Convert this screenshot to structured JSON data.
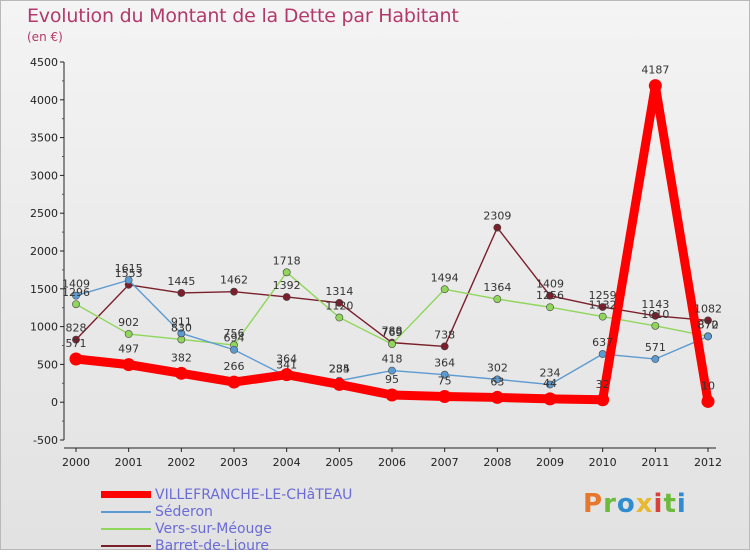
{
  "header": {
    "title": "Evolution du Montant de la Dette par Habitant",
    "subtitle": "(en €)"
  },
  "logo": {
    "text": "Proxiti"
  },
  "chart_data": {
    "type": "line",
    "title": "Evolution du Montant de la Dette par Habitant",
    "ylabel": "(en €)",
    "xlabel": "",
    "x": [
      "2000",
      "2001",
      "2002",
      "2003",
      "2004",
      "2005",
      "2006",
      "2007",
      "2008",
      "2009",
      "2010",
      "2011",
      "2012"
    ],
    "ylim": [
      -500,
      4500
    ],
    "yticks": [
      -500,
      0,
      500,
      1000,
      1500,
      2000,
      2500,
      3000,
      3500,
      4000,
      4500
    ],
    "grid": false,
    "legend": "bottom-left",
    "series": [
      {
        "name": "VILLEFRANCHE-LE-CHâTEAU",
        "color": "#ff0000",
        "values": [
          571,
          497,
          382,
          266,
          364,
          235,
          95,
          75,
          63,
          44,
          32,
          4187,
          10
        ],
        "labels": [
          "571",
          "497",
          "382",
          "266",
          "364",
          "235",
          "95",
          "75",
          "63",
          "44",
          "32",
          "4187",
          "10"
        ]
      },
      {
        "name": "Séderon",
        "color": "#5c9bd1",
        "values": [
          1409,
          1615,
          911,
          694,
          341,
          284,
          418,
          364,
          302,
          234,
          637,
          571,
          870
        ],
        "labels": [
          "1409",
          "1615",
          "911",
          "694",
          "341",
          "284",
          "418",
          "364",
          "302",
          "234",
          "637",
          "571",
          "870"
        ]
      },
      {
        "name": "Vers-sur-Méouge",
        "color": "#8fd65a",
        "values": [
          1296,
          902,
          830,
          756,
          1718,
          1120,
          769,
          1494,
          1364,
          1256,
          1132,
          1010,
          872
        ],
        "labels": [
          "1296",
          "902",
          "830",
          "756",
          "1718",
          "1120",
          "769",
          "1494",
          "1364",
          "1256",
          "1132",
          "1010",
          "872"
        ]
      },
      {
        "name": "Barret-de-Lioure",
        "color": "#7a1f2b",
        "values": [
          828,
          1553,
          1445,
          1462,
          1392,
          1314,
          788,
          738,
          2309,
          1409,
          1259,
          1143,
          1082
        ],
        "labels": [
          "828",
          "1553",
          "1445",
          "1462",
          "1392",
          "1314",
          "788",
          "738",
          "2309",
          "1409",
          "1259",
          "1143",
          "1082"
        ]
      }
    ]
  }
}
